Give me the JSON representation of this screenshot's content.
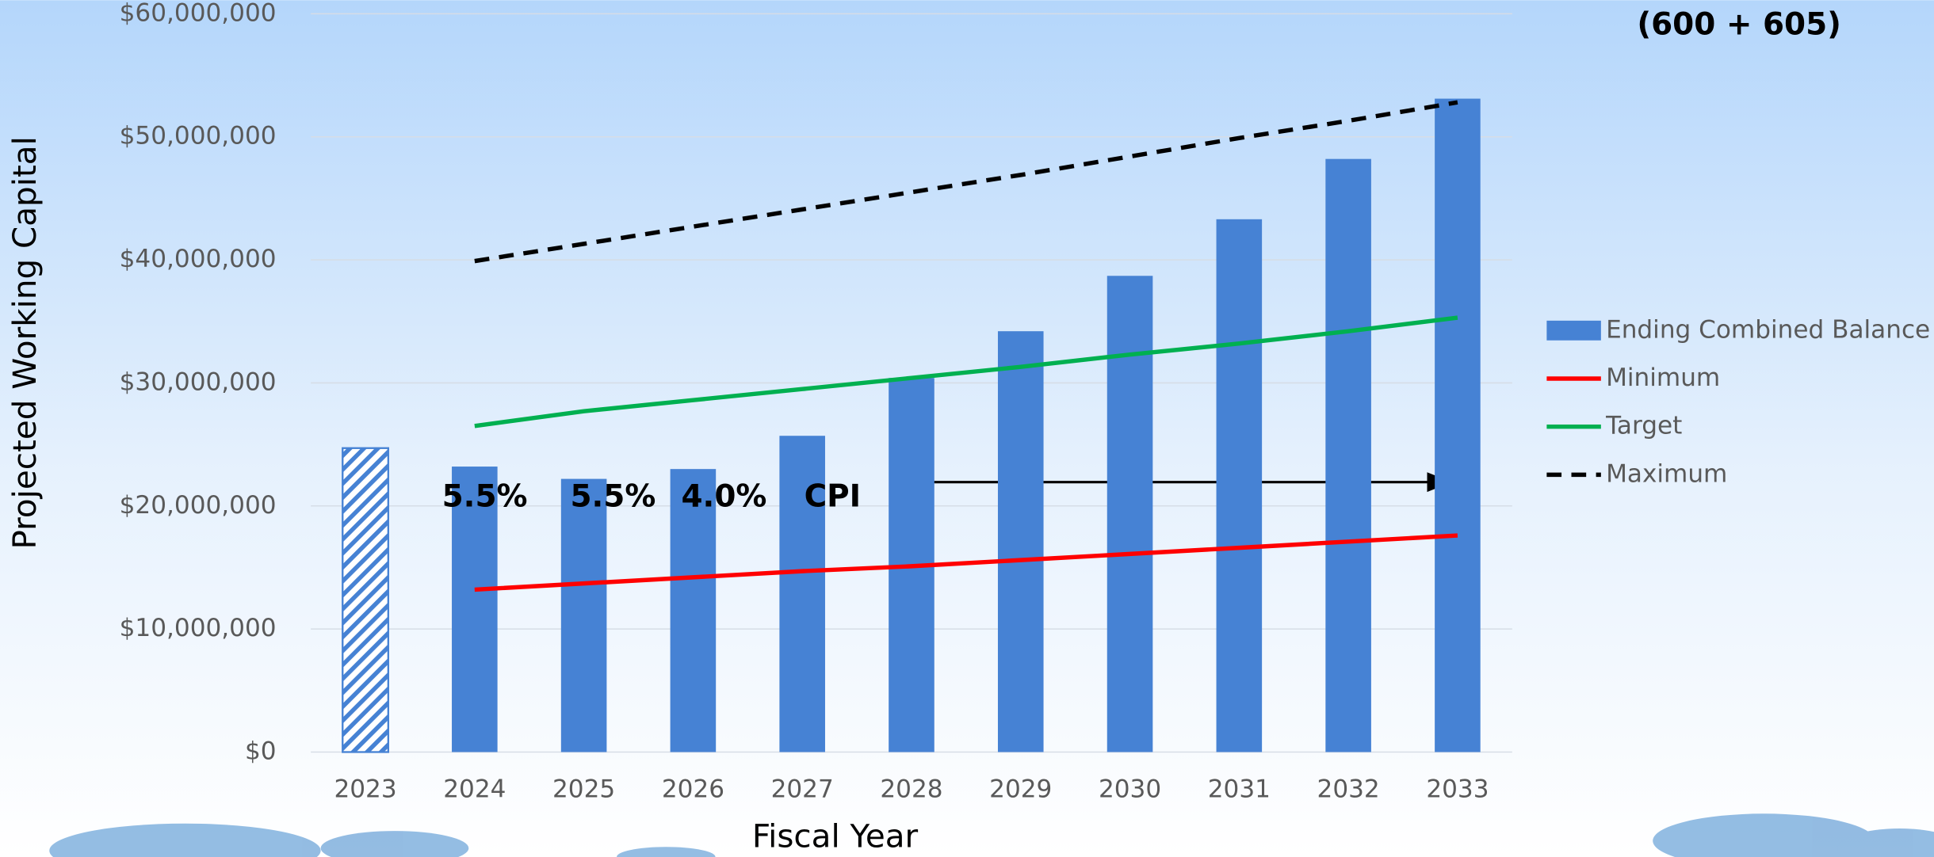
{
  "chart_data": {
    "type": "bar",
    "title": "(600 + 605)",
    "x_label": "Fiscal Year",
    "y_label": "Projected Working Capital",
    "categories": [
      "2023",
      "2024",
      "2025",
      "2026",
      "2027",
      "2028",
      "2029",
      "2030",
      "2031",
      "2032",
      "2033"
    ],
    "series": [
      {
        "name": "Ending Combined Balance",
        "type": "bar",
        "color": "#4682d4",
        "bar_fill": [
          "hatch",
          "solid",
          "solid",
          "solid",
          "solid",
          "solid",
          "solid",
          "solid",
          "solid",
          "solid",
          "solid"
        ],
        "values": [
          24700000,
          23200000,
          22200000,
          23000000,
          25700000,
          30400000,
          34200000,
          38700000,
          43300000,
          48200000,
          53100000
        ]
      },
      {
        "name": "Minimum",
        "type": "line",
        "color": "#ff0000",
        "values": [
          null,
          13200000,
          13700000,
          14200000,
          14700000,
          15100000,
          15600000,
          16100000,
          16600000,
          17100000,
          17600000
        ]
      },
      {
        "name": "Target",
        "type": "line",
        "color": "#00b050",
        "values": [
          null,
          26500000,
          27700000,
          28600000,
          29500000,
          30400000,
          31300000,
          32300000,
          33200000,
          34200000,
          35300000
        ]
      },
      {
        "name": "Maximum",
        "type": "line",
        "color": "#000000",
        "dashed": true,
        "values": [
          null,
          39900000,
          41300000,
          42700000,
          44100000,
          45500000,
          46900000,
          48400000,
          49900000,
          51300000,
          52800000
        ]
      }
    ],
    "annotations": [
      "5.5%",
      "5.5%",
      "4.0%",
      "CPI"
    ],
    "ylim": [
      0,
      60000000
    ],
    "yticks": [
      {
        "value": 0,
        "label": "$0"
      },
      {
        "value": 10000000,
        "label": "$10,000,000"
      },
      {
        "value": 20000000,
        "label": "$20,000,000"
      },
      {
        "value": 30000000,
        "label": "$30,000,000"
      },
      {
        "value": 40000000,
        "label": "$40,000,000"
      },
      {
        "value": 50000000,
        "label": "$50,000,000"
      },
      {
        "value": 60000000,
        "label": "$60,000,000"
      }
    ],
    "grid": true,
    "legend": "right"
  }
}
